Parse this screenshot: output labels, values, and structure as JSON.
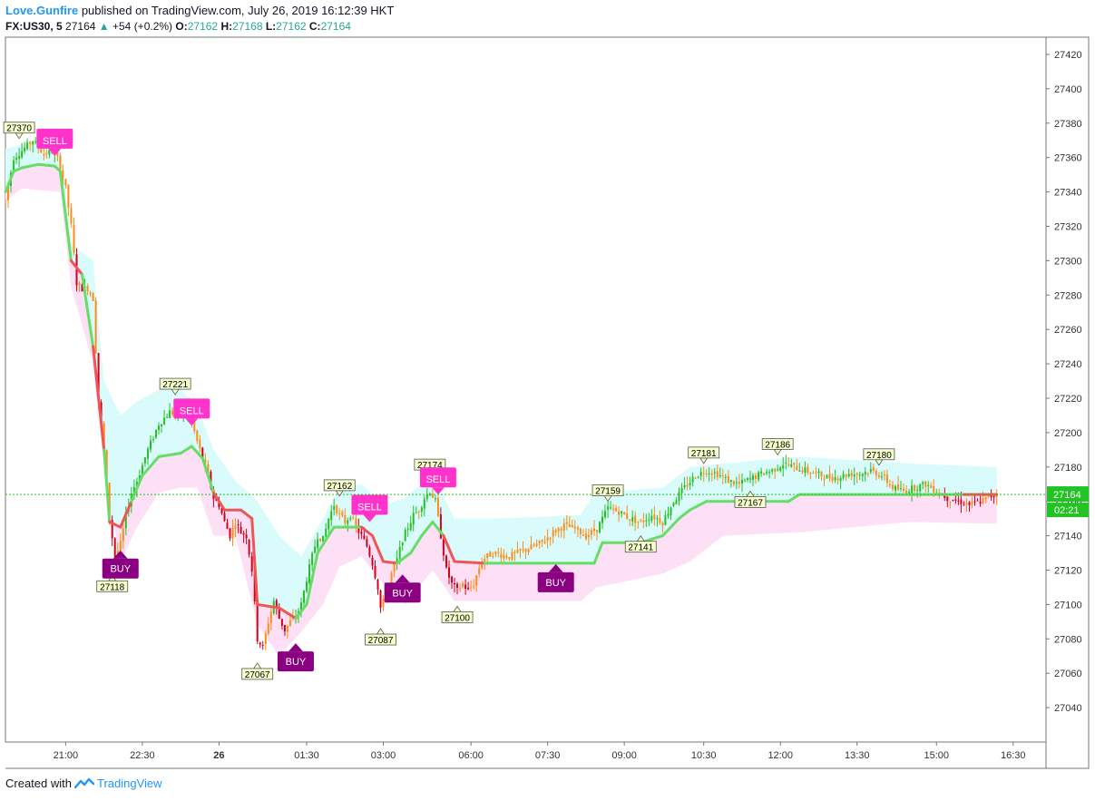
{
  "header": {
    "author": "Love.Gunfire",
    "published_text": "published on TradingView.com, July 26, 2019 16:12:39 HKT",
    "symbol": "FX:US30, 5",
    "last": "27164",
    "change": "+54 (+0.2%)",
    "o_label": "O:",
    "o_value": "27162",
    "h_label": "H:",
    "h_value": "27168",
    "l_label": "L:",
    "l_value": "27162",
    "c_label": "C:",
    "c_value": "27164"
  },
  "footer": {
    "created_with": "Created with",
    "brand": "TradingView"
  },
  "colors": {
    "up": "#26c026",
    "down": "#d0021b",
    "orange": "#ff8c1a",
    "line_bull": "#66dd66",
    "line_bear": "#f05555",
    "band_upper": "#d9fbfb",
    "band_lower": "#fde0f6",
    "sell": "#ff33cc",
    "buy": "#8b0080",
    "price_tag": "#22c322"
  },
  "chart_data": {
    "type": "candlestick",
    "y_range": [
      27020,
      27430
    ],
    "y_ticks": [
      27040,
      27060,
      27080,
      27100,
      27120,
      27140,
      27160,
      27180,
      27200,
      27220,
      27240,
      27260,
      27280,
      27300,
      27320,
      27340,
      27360,
      27380,
      27400,
      27420
    ],
    "x_range": [
      0,
      380
    ],
    "x_ticks": [
      {
        "label": "21:00",
        "x": 22
      },
      {
        "label": "22:30",
        "x": 50
      },
      {
        "label": "26",
        "x": 78
      },
      {
        "label": "01:30",
        "x": 110
      },
      {
        "label": "03:00",
        "x": 138
      },
      {
        "label": "06:00",
        "x": 170
      },
      {
        "label": "07:30",
        "x": 198
      },
      {
        "label": "09:00",
        "x": 226
      },
      {
        "label": "10:30",
        "x": 255
      },
      {
        "label": "12:00",
        "x": 283
      },
      {
        "label": "13:30",
        "x": 311
      },
      {
        "label": "15:00",
        "x": 340
      },
      {
        "label": "16:30",
        "x": 368
      }
    ],
    "current_price": {
      "value": 27164,
      "label": "27164",
      "countdown": "02:21"
    },
    "price_labels": [
      {
        "text": "27370",
        "x": 5,
        "y": 27370,
        "pos": "above"
      },
      {
        "text": "27221",
        "x": 62,
        "y": 27221,
        "pos": "above"
      },
      {
        "text": "27118",
        "x": 39,
        "y": 27118,
        "pos": "below"
      },
      {
        "text": "27067",
        "x": 92,
        "y": 27067,
        "pos": "below"
      },
      {
        "text": "27162",
        "x": 122,
        "y": 27162,
        "pos": "above"
      },
      {
        "text": "27087",
        "x": 137,
        "y": 27087,
        "pos": "below"
      },
      {
        "text": "27174",
        "x": 155,
        "y": 27174,
        "pos": "above"
      },
      {
        "text": "27100",
        "x": 165,
        "y": 27100,
        "pos": "below"
      },
      {
        "text": "27159",
        "x": 220,
        "y": 27159,
        "pos": "above"
      },
      {
        "text": "27141",
        "x": 232,
        "y": 27141,
        "pos": "below"
      },
      {
        "text": "27181",
        "x": 255,
        "y": 27181,
        "pos": "above"
      },
      {
        "text": "27167",
        "x": 272,
        "y": 27167,
        "pos": "below"
      },
      {
        "text": "27186",
        "x": 282,
        "y": 27186,
        "pos": "above"
      },
      {
        "text": "27180",
        "x": 319,
        "y": 27180,
        "pos": "above"
      }
    ],
    "signals": [
      {
        "type": "sell",
        "label": "SELL",
        "x": 18,
        "y": 27362
      },
      {
        "type": "buy",
        "label": "BUY",
        "x": 42,
        "y": 27132
      },
      {
        "type": "sell",
        "label": "SELL",
        "x": 68,
        "y": 27205
      },
      {
        "type": "buy",
        "label": "BUY",
        "x": 106,
        "y": 27078
      },
      {
        "type": "sell",
        "label": "SELL",
        "x": 133,
        "y": 27149
      },
      {
        "type": "buy",
        "label": "BUY",
        "x": 145,
        "y": 27118
      },
      {
        "type": "sell",
        "label": "SELL",
        "x": 158,
        "y": 27165
      },
      {
        "type": "buy",
        "label": "BUY",
        "x": 201,
        "y": 27124
      }
    ],
    "trail": [
      [
        0,
        27340
      ],
      [
        3,
        27352
      ],
      [
        6,
        27354
      ],
      [
        12,
        27356
      ],
      [
        18,
        27355
      ],
      [
        20,
        27352
      ],
      [
        24,
        27300
      ],
      [
        28,
        27292
      ],
      [
        32,
        27250
      ],
      [
        36,
        27190
      ],
      [
        38,
        27148
      ],
      [
        42,
        27145
      ],
      [
        46,
        27160
      ],
      [
        50,
        27175
      ],
      [
        56,
        27186
      ],
      [
        64,
        27188
      ],
      [
        68,
        27192
      ],
      [
        72,
        27185
      ],
      [
        76,
        27165
      ],
      [
        80,
        27155
      ],
      [
        86,
        27155
      ],
      [
        90,
        27150
      ],
      [
        92,
        27100
      ],
      [
        100,
        27098
      ],
      [
        106,
        27092
      ],
      [
        110,
        27100
      ],
      [
        114,
        27130
      ],
      [
        120,
        27145
      ],
      [
        130,
        27145
      ],
      [
        134,
        27140
      ],
      [
        138,
        27125
      ],
      [
        143,
        27124
      ],
      [
        148,
        27130
      ],
      [
        152,
        27140
      ],
      [
        156,
        27148
      ],
      [
        160,
        27140
      ],
      [
        164,
        27125
      ],
      [
        175,
        27124
      ],
      [
        200,
        27124
      ],
      [
        215,
        27124
      ],
      [
        218,
        27136
      ],
      [
        232,
        27136
      ],
      [
        240,
        27140
      ],
      [
        246,
        27150
      ],
      [
        250,
        27155
      ],
      [
        256,
        27160
      ],
      [
        270,
        27160
      ],
      [
        286,
        27160
      ],
      [
        290,
        27164
      ],
      [
        300,
        27164
      ],
      [
        330,
        27164
      ],
      [
        350,
        27164
      ],
      [
        362,
        27164
      ]
    ],
    "band_upper": [
      [
        0,
        27365
      ],
      [
        12,
        27370
      ],
      [
        20,
        27368
      ],
      [
        24,
        27310
      ],
      [
        32,
        27300
      ],
      [
        36,
        27230
      ],
      [
        42,
        27210
      ],
      [
        48,
        27218
      ],
      [
        56,
        27225
      ],
      [
        64,
        27225
      ],
      [
        70,
        27215
      ],
      [
        76,
        27190
      ],
      [
        84,
        27172
      ],
      [
        92,
        27160
      ],
      [
        100,
        27140
      ],
      [
        108,
        27128
      ],
      [
        116,
        27150
      ],
      [
        122,
        27168
      ],
      [
        130,
        27170
      ],
      [
        138,
        27158
      ],
      [
        146,
        27162
      ],
      [
        156,
        27176
      ],
      [
        164,
        27150
      ],
      [
        180,
        27150
      ],
      [
        210,
        27152
      ],
      [
        215,
        27165
      ],
      [
        240,
        27168
      ],
      [
        250,
        27180
      ],
      [
        262,
        27182
      ],
      [
        290,
        27186
      ],
      [
        330,
        27182
      ],
      [
        362,
        27180
      ]
    ],
    "band_lower": [
      [
        0,
        27335
      ],
      [
        6,
        27342
      ],
      [
        20,
        27340
      ],
      [
        24,
        27285
      ],
      [
        32,
        27240
      ],
      [
        36,
        27180
      ],
      [
        42,
        27125
      ],
      [
        48,
        27145
      ],
      [
        56,
        27165
      ],
      [
        64,
        27168
      ],
      [
        70,
        27168
      ],
      [
        76,
        27140
      ],
      [
        84,
        27140
      ],
      [
        92,
        27088
      ],
      [
        100,
        27070
      ],
      [
        108,
        27084
      ],
      [
        116,
        27100
      ],
      [
        122,
        27122
      ],
      [
        130,
        27128
      ],
      [
        138,
        27112
      ],
      [
        146,
        27100
      ],
      [
        156,
        27120
      ],
      [
        164,
        27102
      ],
      [
        180,
        27102
      ],
      [
        210,
        27102
      ],
      [
        216,
        27110
      ],
      [
        240,
        27118
      ],
      [
        250,
        27125
      ],
      [
        262,
        27140
      ],
      [
        290,
        27142
      ],
      [
        330,
        27148
      ],
      [
        362,
        27147
      ]
    ],
    "anchors": [
      [
        0,
        27335
      ],
      [
        3,
        27360
      ],
      [
        6,
        27364
      ],
      [
        10,
        27370
      ],
      [
        14,
        27362
      ],
      [
        18,
        27364
      ],
      [
        20,
        27355
      ],
      [
        22,
        27342
      ],
      [
        24,
        27320
      ],
      [
        26,
        27287
      ],
      [
        28,
        27284
      ],
      [
        30,
        27284
      ],
      [
        32,
        27278
      ],
      [
        34,
        27218
      ],
      [
        36,
        27190
      ],
      [
        38,
        27150
      ],
      [
        40,
        27128
      ],
      [
        42,
        27135
      ],
      [
        44,
        27152
      ],
      [
        46,
        27165
      ],
      [
        48,
        27172
      ],
      [
        52,
        27190
      ],
      [
        56,
        27205
      ],
      [
        60,
        27212
      ],
      [
        63,
        27210
      ],
      [
        66,
        27216
      ],
      [
        68,
        27206
      ],
      [
        70,
        27195
      ],
      [
        72,
        27185
      ],
      [
        74,
        27175
      ],
      [
        76,
        27162
      ],
      [
        78,
        27158
      ],
      [
        80,
        27148
      ],
      [
        82,
        27140
      ],
      [
        84,
        27148
      ],
      [
        86,
        27142
      ],
      [
        88,
        27140
      ],
      [
        90,
        27120
      ],
      [
        92,
        27080
      ],
      [
        94,
        27075
      ],
      [
        96,
        27090
      ],
      [
        98,
        27102
      ],
      [
        100,
        27092
      ],
      [
        102,
        27085
      ],
      [
        104,
        27090
      ],
      [
        106,
        27093
      ],
      [
        108,
        27100
      ],
      [
        110,
        27115
      ],
      [
        112,
        27128
      ],
      [
        114,
        27140
      ],
      [
        116,
        27138
      ],
      [
        118,
        27150
      ],
      [
        120,
        27158
      ],
      [
        122,
        27152
      ],
      [
        124,
        27148
      ],
      [
        126,
        27152
      ],
      [
        128,
        27145
      ],
      [
        130,
        27140
      ],
      [
        132,
        27134
      ],
      [
        134,
        27124
      ],
      [
        136,
        27110
      ],
      [
        137,
        27098
      ],
      [
        139,
        27105
      ],
      [
        141,
        27118
      ],
      [
        143,
        27126
      ],
      [
        145,
        27138
      ],
      [
        147,
        27145
      ],
      [
        149,
        27152
      ],
      [
        151,
        27155
      ],
      [
        153,
        27162
      ],
      [
        155,
        27166
      ],
      [
        157,
        27160
      ],
      [
        159,
        27140
      ],
      [
        161,
        27120
      ],
      [
        163,
        27112
      ],
      [
        165,
        27108
      ],
      [
        167,
        27112
      ],
      [
        169,
        27108
      ],
      [
        171,
        27112
      ],
      [
        174,
        27126
      ],
      [
        178,
        27130
      ],
      [
        184,
        27128
      ],
      [
        190,
        27132
      ],
      [
        196,
        27136
      ],
      [
        200,
        27142
      ],
      [
        204,
        27146
      ],
      [
        208,
        27144
      ],
      [
        212,
        27140
      ],
      [
        216,
        27144
      ],
      [
        218,
        27150
      ],
      [
        220,
        27156
      ],
      [
        224,
        27154
      ],
      [
        228,
        27150
      ],
      [
        232,
        27148
      ],
      [
        236,
        27152
      ],
      [
        240,
        27148
      ],
      [
        244,
        27160
      ],
      [
        248,
        27168
      ],
      [
        252,
        27175
      ],
      [
        256,
        27178
      ],
      [
        260,
        27176
      ],
      [
        264,
        27172
      ],
      [
        268,
        27170
      ],
      [
        272,
        27173
      ],
      [
        276,
        27176
      ],
      [
        280,
        27178
      ],
      [
        284,
        27182
      ],
      [
        288,
        27180
      ],
      [
        292,
        27178
      ],
      [
        296,
        27176
      ],
      [
        300,
        27174
      ],
      [
        304,
        27174
      ],
      [
        308,
        27176
      ],
      [
        312,
        27176
      ],
      [
        316,
        27178
      ],
      [
        320,
        27175
      ],
      [
        324,
        27168
      ],
      [
        328,
        27166
      ],
      [
        332,
        27168
      ],
      [
        336,
        27170
      ],
      [
        340,
        27166
      ],
      [
        344,
        27162
      ],
      [
        348,
        27160
      ],
      [
        352,
        27158
      ],
      [
        356,
        27160
      ],
      [
        360,
        27163
      ],
      [
        362,
        27164
      ]
    ]
  }
}
